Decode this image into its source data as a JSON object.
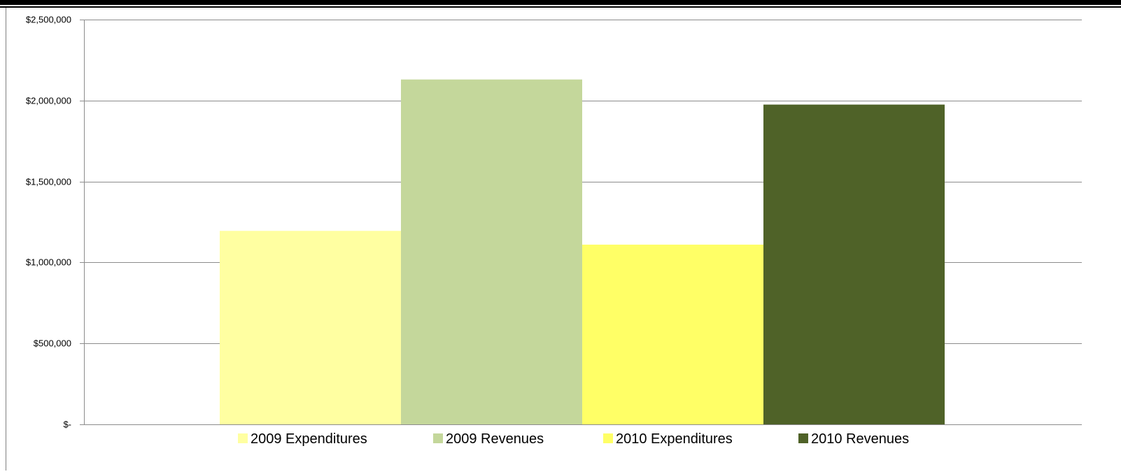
{
  "chart_data": {
    "type": "bar",
    "title": "",
    "xlabel": "",
    "ylabel": "",
    "categories": [
      "2009 Expenditures",
      "2009 Revenues",
      "2010 Expenditures",
      "2010 Revenues"
    ],
    "values": [
      1195000,
      2130000,
      1110000,
      1975000
    ],
    "colors": [
      "#FFFFA1",
      "#C4D79B",
      "#FFFF66",
      "#4F6228"
    ],
    "ylim": [
      0,
      2500000
    ],
    "yticks": [
      0,
      500000,
      1000000,
      1500000,
      2000000,
      2500000
    ],
    "ytick_labels": [
      "$-",
      "$500,000",
      "$1,000,000",
      "$1,500,000",
      "$2,000,000",
      "$2,500,000"
    ],
    "grid": true,
    "legend": {
      "position": "bottom",
      "entries": [
        "2009 Expenditures",
        "2009 Revenues",
        "2010 Expenditures",
        "2010 Revenues"
      ]
    }
  }
}
